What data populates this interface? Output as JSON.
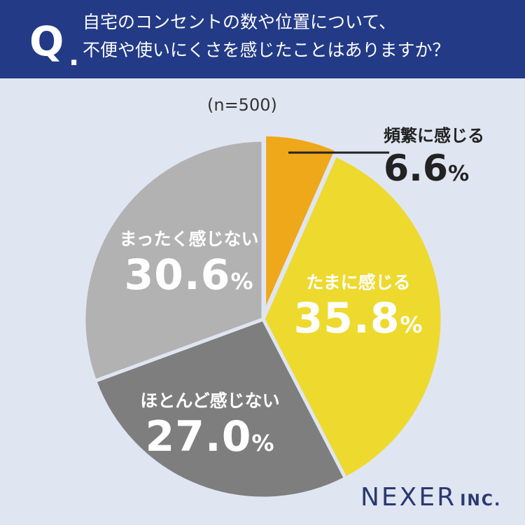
{
  "header": {
    "q_letter": "Q",
    "q_dot": ".",
    "question_line1": "自宅のコンセントの数や位置について、",
    "question_line2": "不便や使いにくさを感じたことはありますか？"
  },
  "colors": {
    "header_bg": "#233a86",
    "background": "#dfe5f1",
    "frequently": "#f0a81b",
    "sometimes": "#eed92e",
    "rarely": "#7e7e7e",
    "never": "#b2b2b2"
  },
  "chart_data": {
    "type": "pie",
    "sample_size": "(n=500)",
    "unit": "%",
    "slices": [
      {
        "label": "頻繁に感じる",
        "value": 6.6,
        "display": "6.6",
        "color": "#f0a81b"
      },
      {
        "label": "たまに感じる",
        "value": 35.8,
        "display": "35.8",
        "color": "#eed92e"
      },
      {
        "label": "ほとんど感じない",
        "value": 27.0,
        "display": "27.0",
        "color": "#7e7e7e"
      },
      {
        "label": "まったく感じない",
        "value": 30.6,
        "display": "30.6",
        "color": "#b2b2b2"
      }
    ]
  },
  "logo": {
    "main": "NEXER",
    "sub": "INC."
  }
}
